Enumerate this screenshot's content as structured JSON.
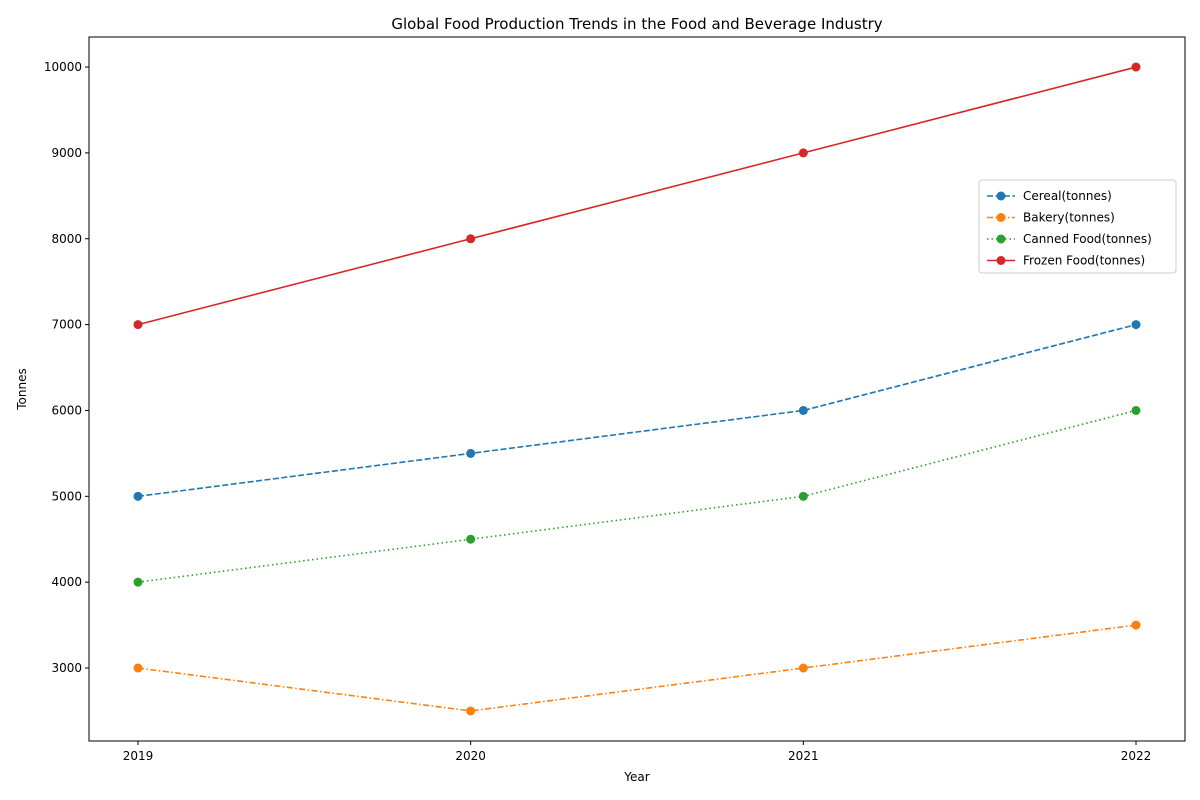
{
  "chart_data": {
    "type": "line",
    "title": "Global Food Production Trends in the Food and Beverage Industry",
    "xlabel": "Year",
    "ylabel": "Tonnes",
    "x": [
      "2019",
      "2020",
      "2021",
      "2022"
    ],
    "ylim": [
      2150,
      10350
    ],
    "yticks": [
      3000,
      4000,
      5000,
      6000,
      7000,
      8000,
      9000,
      10000
    ],
    "grid": false,
    "legend_position": "center-right",
    "series": [
      {
        "name": "Cereal(tonnes)",
        "values": [
          5000,
          5500,
          6000,
          7000
        ],
        "color": "#1f77b4",
        "linestyle": "dashed",
        "marker": "circle"
      },
      {
        "name": "Bakery(tonnes)",
        "values": [
          3000,
          2500,
          3000,
          3500
        ],
        "color": "#ff7f0e",
        "linestyle": "dashdot",
        "marker": "circle"
      },
      {
        "name": "Canned Food(tonnes)",
        "values": [
          4000,
          4500,
          5000,
          6000
        ],
        "color": "#2ca02c",
        "linestyle": "dotted",
        "marker": "circle"
      },
      {
        "name": "Frozen Food(tonnes)",
        "values": [
          7000,
          8000,
          9000,
          10000
        ],
        "color": "#d62728",
        "linestyle": "solid",
        "marker": "circle"
      }
    ]
  }
}
